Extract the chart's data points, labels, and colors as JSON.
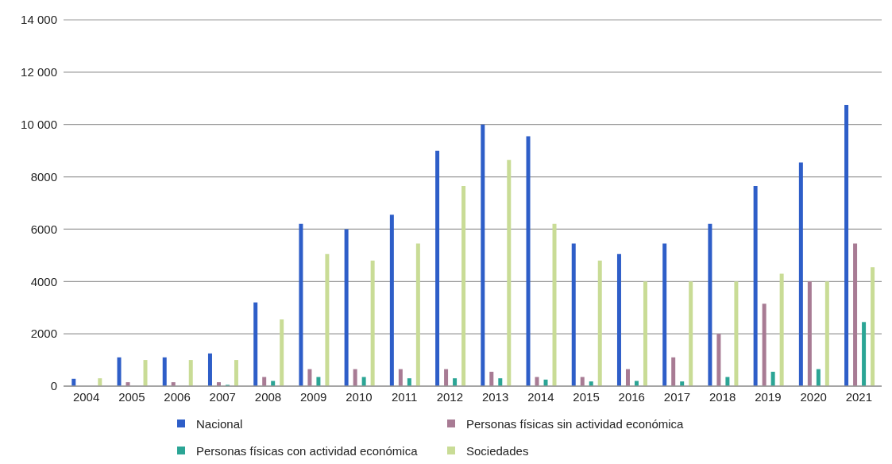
{
  "chart_data": {
    "type": "bar",
    "categories": [
      "2004",
      "2005",
      "2006",
      "2007",
      "2008",
      "2009",
      "2010",
      "2011",
      "2012",
      "2013",
      "2014",
      "2015",
      "2016",
      "2017",
      "2018",
      "2019",
      "2020",
      "2021"
    ],
    "series": [
      {
        "name": "Nacional",
        "color": "#2e5ec8",
        "values": [
          280,
          1100,
          1100,
          1250,
          3200,
          6200,
          6000,
          6550,
          9000,
          10000,
          9550,
          5450,
          5050,
          5450,
          6200,
          7650,
          8550,
          10750
        ]
      },
      {
        "name": "Personas físicas sin actividad económica",
        "color": "#a87b94",
        "values": [
          0,
          150,
          150,
          150,
          350,
          650,
          650,
          650,
          650,
          550,
          350,
          350,
          650,
          1100,
          2000,
          3150,
          4000,
          5450
        ]
      },
      {
        "name": "Personas físicas con actividad económica",
        "color": "#2ba595",
        "values": [
          0,
          0,
          0,
          50,
          200,
          350,
          350,
          300,
          300,
          300,
          250,
          180,
          200,
          180,
          350,
          550,
          650,
          2450
        ]
      },
      {
        "name": "Sociedades",
        "color": "#c9dc96",
        "values": [
          300,
          1000,
          1000,
          1000,
          2550,
          5050,
          4800,
          5450,
          7650,
          8650,
          6200,
          4800,
          4000,
          4000,
          4000,
          4300,
          4000,
          4550
        ]
      }
    ],
    "ylim": [
      0,
      14000
    ],
    "yticks": [
      0,
      2000,
      4000,
      6000,
      8000,
      {
        "value": 10000,
        "label": "10 000"
      },
      {
        "value": 12000,
        "label": "12 000"
      },
      {
        "value": 14000,
        "label": "14 000"
      }
    ],
    "grid": "y",
    "legend": "bottom"
  }
}
